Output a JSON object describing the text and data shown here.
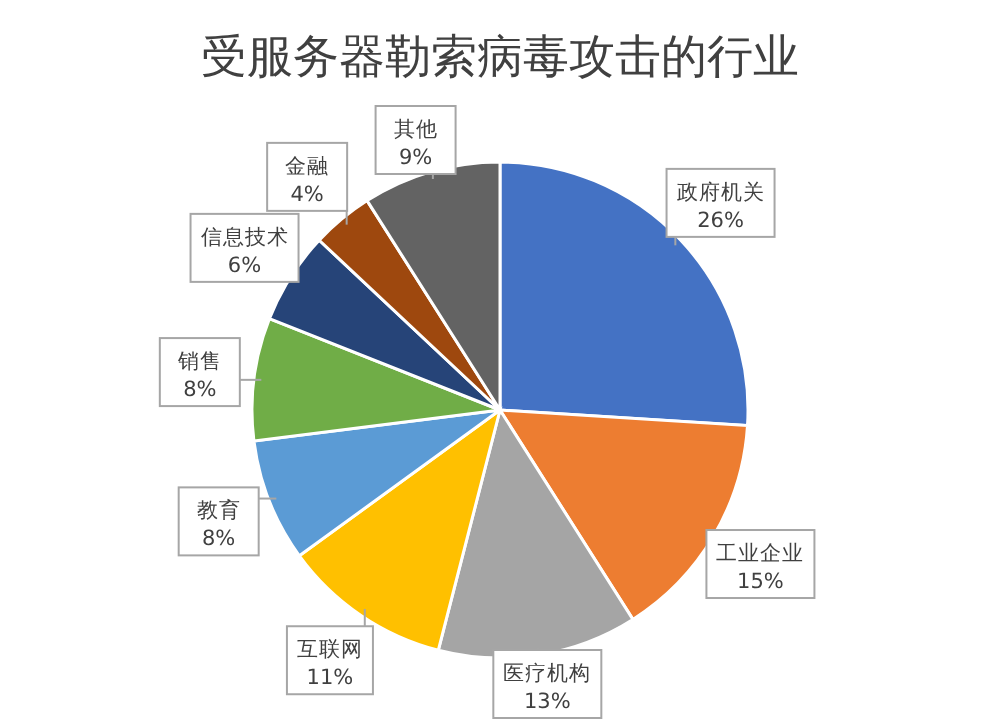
{
  "chart_data": {
    "type": "pie",
    "title": "受服务器勒索病毒攻击的行业",
    "categories": [
      "政府机关",
      "工业企业",
      "医疗机构",
      "互联网",
      "教育",
      "销售",
      "信息技术",
      "金融",
      "其他"
    ],
    "values": [
      26,
      15,
      13,
      11,
      8,
      8,
      6,
      4,
      9
    ],
    "colors": [
      "#4472c4",
      "#ed7d31",
      "#a5a5a5",
      "#ffc000",
      "#5b9bd5",
      "#70ad47",
      "#264478",
      "#9e480e",
      "#636363"
    ],
    "value_labels": [
      "26%",
      "15%",
      "13%",
      "11%",
      "8%",
      "8%",
      "6%",
      "4%",
      "9%"
    ]
  }
}
